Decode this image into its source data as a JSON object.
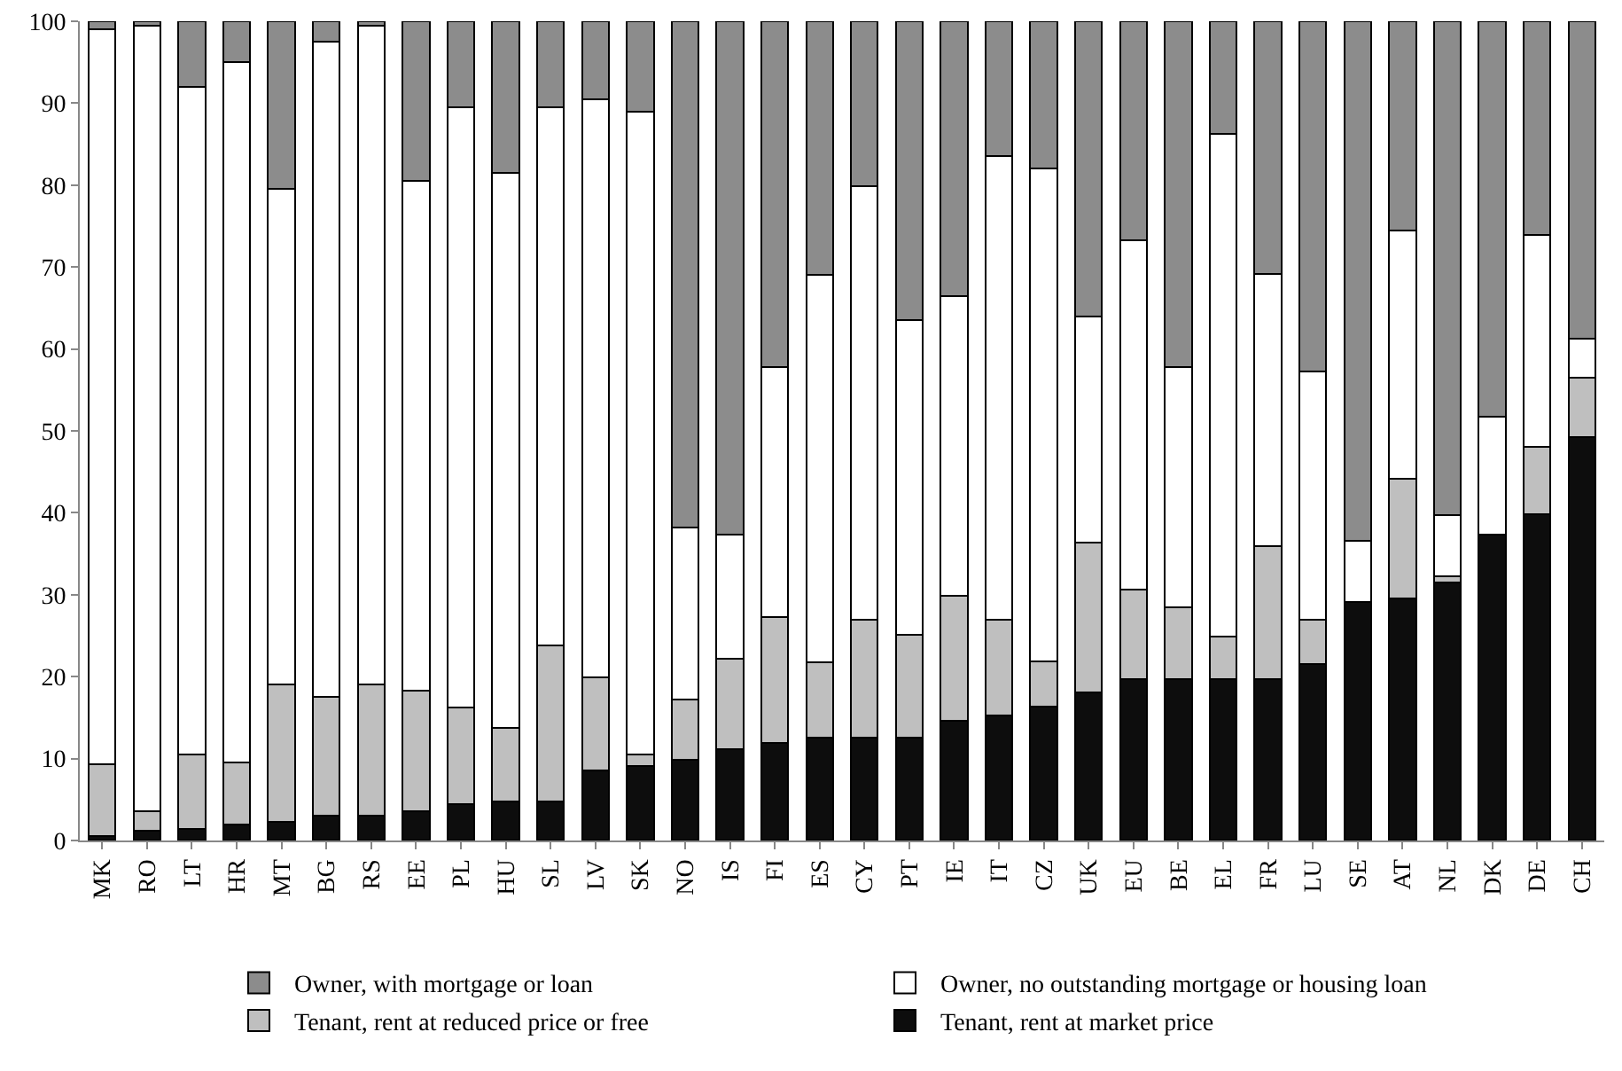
{
  "chart_data": {
    "type": "bar",
    "stacked": true,
    "categories": [
      "MK",
      "RO",
      "LT",
      "HR",
      "MT",
      "BG",
      "RS",
      "EE",
      "PL",
      "HU",
      "SL",
      "LV",
      "SK",
      "NO",
      "IS",
      "FI",
      "ES",
      "CY",
      "PT",
      "IE",
      "IT",
      "CZ",
      "UK",
      "EU",
      "BE",
      "EL",
      "FR",
      "LU",
      "SE",
      "AT",
      "NL",
      "DK",
      "DE",
      "CH"
    ],
    "series": [
      {
        "name": "Tenant, rent at market price",
        "color": "#0d0d0d",
        "values": [
          0.5,
          1.2,
          1.4,
          1.9,
          2.3,
          3.0,
          3.0,
          3.6,
          4.4,
          4.8,
          4.8,
          8.6,
          9.1,
          9.9,
          11.1,
          11.9,
          12.6,
          12.6,
          12.6,
          14.6,
          15.3,
          16.3,
          18.1,
          19.7,
          19.7,
          19.7,
          19.7,
          21.5,
          29.1,
          29.5,
          31.5,
          37.3,
          39.8,
          49.2
        ]
      },
      {
        "name": "Tenant, rent at reduced price or free",
        "color": "#bfbfbf",
        "values": [
          8.8,
          2.4,
          9.1,
          7.6,
          16.7,
          14.5,
          16,
          14.7,
          11.8,
          8.9,
          19,
          11.3,
          1.4,
          7.3,
          11.1,
          15.4,
          9.2,
          14.3,
          12.5,
          15.3,
          11.7,
          5.6,
          18.3,
          10.9,
          8.8,
          5.2,
          16.2,
          5.4,
          0,
          14.7,
          0.7,
          0,
          8.2,
          7.3
        ]
      },
      {
        "name": "Owner, no outstanding mortgage or housing loan",
        "color": "#ffffff",
        "values": [
          89.7,
          95.9,
          81.5,
          85.5,
          60.5,
          80,
          80.5,
          62.2,
          73.3,
          67.8,
          65.7,
          70.6,
          78.5,
          21,
          15.1,
          30.5,
          47.2,
          53,
          38.4,
          36.6,
          56.5,
          60.1,
          27.6,
          42.7,
          29.3,
          61.4,
          33.3,
          30.4,
          7.5,
          30.3,
          7.5,
          14.4,
          25.9,
          4.8
        ]
      },
      {
        "name": "Owner, with mortgage or loan",
        "color": "#8c8c8c",
        "values": [
          1,
          0.5,
          8,
          5,
          20.5,
          2.5,
          0.5,
          19.5,
          10.5,
          18.5,
          10.5,
          9.5,
          11,
          61.8,
          62.7,
          42.2,
          31,
          20.1,
          36.5,
          33.5,
          16.5,
          18,
          36,
          26.7,
          42.2,
          13.7,
          30.8,
          42.7,
          63.4,
          25.5,
          60.3,
          48.3,
          26.1,
          38.7
        ]
      }
    ],
    "ylim": [
      0,
      100
    ],
    "yticks": [
      0,
      10,
      20,
      30,
      40,
      50,
      60,
      70,
      80,
      90,
      100
    ],
    "legend": "bottom"
  }
}
